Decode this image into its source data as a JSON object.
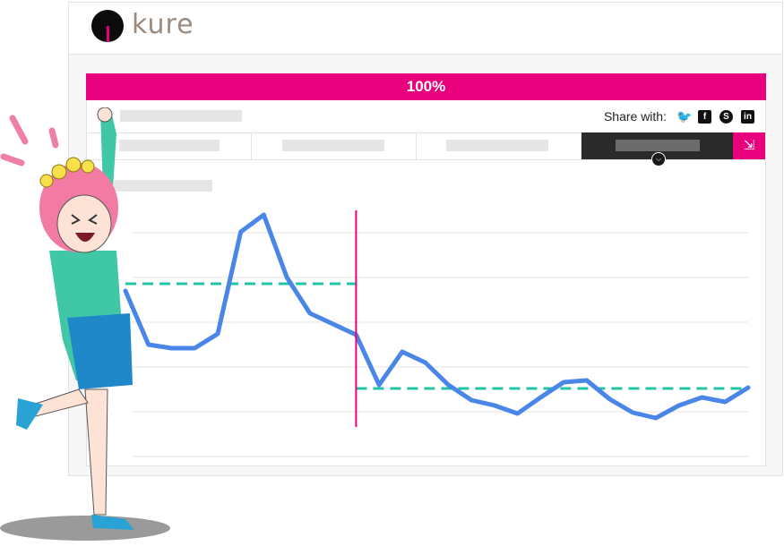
{
  "brand": {
    "name": "kure",
    "colors": {
      "accent": "#e8007d",
      "text": "#9a8b80"
    }
  },
  "progress": {
    "label": "100%",
    "value": 1.0
  },
  "share": {
    "label": "Share with:",
    "networks": [
      {
        "name": "twitter",
        "icon": "twitter-icon",
        "glyph": "🐦"
      },
      {
        "name": "facebook",
        "icon": "facebook-icon",
        "glyph": "f"
      },
      {
        "name": "skype",
        "icon": "skype-icon",
        "glyph": "S"
      },
      {
        "name": "linkedin",
        "icon": "linkedin-icon",
        "glyph": "in"
      }
    ]
  },
  "tabs": [
    {
      "active": false
    },
    {
      "active": false
    },
    {
      "active": false
    },
    {
      "active": true
    }
  ],
  "collapse_icon": "compress-icon",
  "chart_data": {
    "type": "line",
    "title": "",
    "xlabel": "",
    "ylabel": "",
    "grid": true,
    "x": [
      1,
      2,
      3,
      4,
      5,
      6,
      7,
      8,
      9,
      10,
      11,
      12,
      13,
      14,
      15,
      16,
      17,
      18,
      19,
      20,
      21,
      22,
      23,
      24,
      25,
      26,
      27,
      28
    ],
    "ylim": [
      0,
      270
    ],
    "series": [
      {
        "values": [
          185,
          125,
          121,
          121,
          137,
          251,
          270,
          200,
          160,
          148,
          136,
          80,
          117,
          105,
          80,
          63,
          57,
          48,
          66,
          83,
          85,
          64,
          49,
          43,
          57,
          66,
          61,
          77
        ],
        "color": "#4a86e8"
      }
    ],
    "reference_lines": [
      {
        "from_x": 1,
        "to_x": 11,
        "y": 193,
        "color": "#21c4a4",
        "style": "dashed"
      },
      {
        "from_x": 11,
        "to_x": 28,
        "y": 76,
        "color": "#21c4a4",
        "style": "dashed"
      }
    ],
    "marker": {
      "x": 11,
      "color": "#e8007d"
    }
  }
}
